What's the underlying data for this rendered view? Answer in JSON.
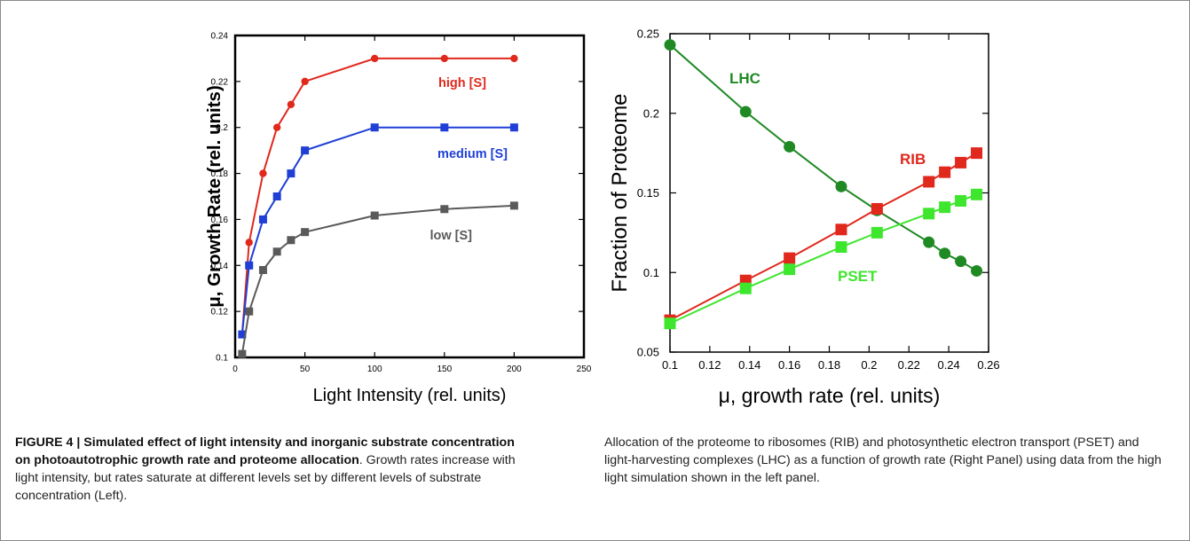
{
  "figure": {
    "caption_label": "FIGURE 4 | ",
    "caption_title": "Simulated effect of light intensity and inorganic substrate concentration on photoautotrophic growth rate and proteome allocation",
    "caption_left_rest": ". Growth rates increase with light intensity, but rates saturate at different levels set by different levels of substrate concentration (Left).",
    "caption_right": "Allocation of the proteome to ribosomes (RIB) and photosynthetic electron transport (PSET) and light-harvesting complexes (LHC) as a function of growth rate (Right Panel) using data from the high light simulation shown in the left panel."
  },
  "chart_data": [
    {
      "type": "line",
      "xlabel": "Light Intensity (rel. units)",
      "ylabel": "μ, Growth Rate (rel. units)",
      "xlim": [
        0,
        250
      ],
      "ylim": [
        0.1,
        0.24
      ],
      "xticks": [
        "0",
        "50",
        "100",
        "150",
        "200",
        "250"
      ],
      "yticks": [
        "0.1",
        "0.12",
        "0.14",
        "0.16",
        "0.18",
        "0.2",
        "0.22",
        "0.24"
      ],
      "grid": false,
      "series": [
        {
          "name": "high [S]",
          "color": "#e0281c",
          "marker": "circle",
          "x": [
            5,
            10,
            20,
            30,
            40,
            50,
            100,
            150,
            200
          ],
          "y": [
            0.11,
            0.15,
            0.18,
            0.2,
            0.21,
            0.22,
            0.23,
            0.23,
            0.23
          ]
        },
        {
          "name": "medium [S]",
          "color": "#1f3fd6",
          "marker": "square",
          "x": [
            5,
            10,
            20,
            30,
            40,
            50,
            100,
            150,
            200
          ],
          "y": [
            0.11,
            0.14,
            0.16,
            0.17,
            0.18,
            0.19,
            0.2,
            0.2,
            0.2
          ]
        },
        {
          "name": "low [S]",
          "color": "#5a5a5a",
          "marker": "square",
          "x": [
            5,
            10,
            20,
            30,
            40,
            50,
            100,
            150,
            200
          ],
          "y": [
            0.1015,
            0.12,
            0.138,
            0.146,
            0.151,
            0.1545,
            0.1617,
            0.1645,
            0.166
          ]
        }
      ]
    },
    {
      "type": "line",
      "xlabel": "μ, growth rate (rel. units)",
      "ylabel": "Fraction of Proteome",
      "xlim": [
        0.1,
        0.26
      ],
      "ylim": [
        0.05,
        0.25
      ],
      "xticks": [
        "0.1",
        "0.12",
        "0.14",
        "0.16",
        "0.18",
        "0.2",
        "0.22",
        "0.24",
        "0.26"
      ],
      "yticks": [
        "0.05",
        "0.1",
        "0.15",
        "0.2",
        "0.25"
      ],
      "grid": false,
      "series": [
        {
          "name": "LHC",
          "color": "#1f8a24",
          "marker": "circle",
          "x": [
            0.1,
            0.138,
            0.16,
            0.186,
            0.204,
            0.23,
            0.238,
            0.246,
            0.254
          ],
          "y": [
            0.243,
            0.201,
            0.179,
            0.154,
            0.139,
            0.119,
            0.112,
            0.107,
            0.101
          ]
        },
        {
          "name": "RIB",
          "color": "#e0281c",
          "marker": "square",
          "x": [
            0.1,
            0.138,
            0.16,
            0.186,
            0.204,
            0.23,
            0.238,
            0.246,
            0.254
          ],
          "y": [
            0.07,
            0.095,
            0.109,
            0.127,
            0.14,
            0.157,
            0.163,
            0.169,
            0.175
          ]
        },
        {
          "name": "PSET",
          "color": "#3ee62e",
          "marker": "square",
          "x": [
            0.1,
            0.138,
            0.16,
            0.186,
            0.204,
            0.23,
            0.238,
            0.246,
            0.254
          ],
          "y": [
            0.068,
            0.09,
            0.102,
            0.116,
            0.125,
            0.137,
            0.141,
            0.145,
            0.149
          ]
        }
      ]
    }
  ]
}
